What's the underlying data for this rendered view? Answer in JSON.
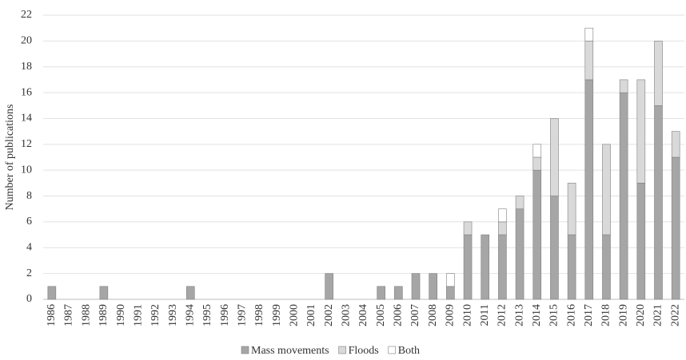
{
  "chart_data": {
    "type": "stacked_bar",
    "y_label": "Number of publications",
    "categories": [
      "1986",
      "1987",
      "1988",
      "1989",
      "1990",
      "1991",
      "1992",
      "1993",
      "1994",
      "1995",
      "1996",
      "1997",
      "1998",
      "1999",
      "2000",
      "2001",
      "2002",
      "2003",
      "2004",
      "2005",
      "2006",
      "2007",
      "2008",
      "2009",
      "2010",
      "2011",
      "2012",
      "2013",
      "2014",
      "2015",
      "2016",
      "2017",
      "2018",
      "2019",
      "2020",
      "2021",
      "2022"
    ],
    "series": [
      {
        "name": "Mass movements",
        "color": "#a6a6a6",
        "values": [
          1,
          0,
          0,
          1,
          0,
          0,
          0,
          0,
          1,
          0,
          0,
          0,
          0,
          0,
          0,
          0,
          2,
          0,
          0,
          1,
          1,
          2,
          2,
          1,
          5,
          5,
          5,
          7,
          10,
          8,
          5,
          17,
          5,
          16,
          9,
          15,
          11
        ]
      },
      {
        "name": "Floods",
        "color": "#d9d9d9",
        "values": [
          0,
          0,
          0,
          0,
          0,
          0,
          0,
          0,
          0,
          0,
          0,
          0,
          0,
          0,
          0,
          0,
          0,
          0,
          0,
          0,
          0,
          0,
          0,
          0,
          1,
          0,
          1,
          1,
          1,
          6,
          4,
          3,
          7,
          1,
          8,
          5,
          2
        ]
      },
      {
        "name": "Both",
        "color": "#ffffff",
        "values": [
          0,
          0,
          0,
          0,
          0,
          0,
          0,
          0,
          0,
          0,
          0,
          0,
          0,
          0,
          0,
          0,
          0,
          0,
          0,
          0,
          0,
          0,
          0,
          1,
          0,
          0,
          1,
          0,
          1,
          0,
          0,
          1,
          0,
          0,
          0,
          0,
          0
        ]
      }
    ],
    "ylim": [
      0,
      22
    ],
    "yticks": [
      0,
      2,
      4,
      6,
      8,
      10,
      12,
      14,
      16,
      18,
      20,
      22
    ],
    "grid": true,
    "legend": "bottom"
  }
}
